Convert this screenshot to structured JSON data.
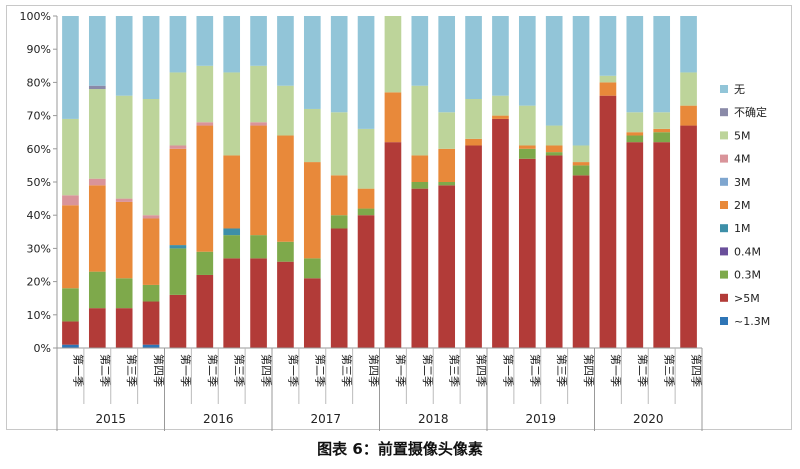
{
  "caption": "图表 6：前置摄像头像素",
  "chart_data": {
    "type": "bar",
    "stacked": true,
    "percent": true,
    "ylim": [
      0,
      100
    ],
    "yticks": [
      "0%",
      "10%",
      "20%",
      "30%",
      "40%",
      "50%",
      "60%",
      "70%",
      "80%",
      "90%",
      "100%"
    ],
    "grid": false,
    "legend_position": "right",
    "groups": [
      {
        "label": "2015",
        "categories": [
          "第一季",
          "第二季",
          "第三季",
          "第四季"
        ]
      },
      {
        "label": "2016",
        "categories": [
          "第一季",
          "第二季",
          "第三季",
          "第四季"
        ]
      },
      {
        "label": "2017",
        "categories": [
          "第一季",
          "第二季",
          "第三季",
          "第四季"
        ]
      },
      {
        "label": "2018",
        "categories": [
          "第一季",
          "第二季",
          "第三季",
          "第四季"
        ]
      },
      {
        "label": "2019",
        "categories": [
          "第一季",
          "第二季",
          "第三季",
          "第四季"
        ]
      },
      {
        "label": "2020",
        "categories": [
          "第一季",
          "第二季",
          "第三季",
          "第四季"
        ]
      }
    ],
    "series": [
      {
        "name": "~1.3M",
        "color": "#2e75b6",
        "values": [
          1,
          0,
          0,
          1,
          0,
          0,
          0,
          0,
          0,
          0,
          0,
          0,
          0,
          0,
          0,
          0,
          0,
          0,
          0,
          0,
          0,
          0,
          0,
          0
        ]
      },
      {
        "name": ">5M",
        "color": "#b23b38",
        "values": [
          7,
          12,
          12,
          13,
          16,
          22,
          27,
          27,
          26,
          21,
          36,
          40,
          62,
          48,
          49,
          61,
          69,
          57,
          58,
          52,
          76,
          62,
          62,
          67
        ]
      },
      {
        "name": "0.3M",
        "color": "#7ea94b",
        "values": [
          10,
          11,
          9,
          5,
          14,
          7,
          7,
          7,
          6,
          6,
          4,
          2,
          0,
          2,
          1,
          0,
          0,
          3,
          1,
          3,
          0,
          2,
          3,
          0
        ]
      },
      {
        "name": "0.4M",
        "color": "#6a4f9b",
        "values": [
          0,
          0,
          0,
          0,
          0,
          0,
          0,
          0,
          0,
          0,
          0,
          0,
          0,
          0,
          0,
          0,
          0,
          0,
          0,
          0,
          0,
          0,
          0,
          0
        ]
      },
      {
        "name": "1M",
        "color": "#3d8fa8",
        "values": [
          0,
          0,
          0,
          0,
          1,
          0,
          2,
          0,
          0,
          0,
          0,
          0,
          0,
          0,
          0,
          0,
          0,
          0,
          0,
          0,
          0,
          0,
          0,
          0
        ]
      },
      {
        "name": "2M",
        "color": "#e8893a",
        "values": [
          25,
          26,
          23,
          20,
          29,
          38,
          22,
          33,
          32,
          29,
          12,
          6,
          15,
          8,
          10,
          2,
          1,
          1,
          2,
          1,
          4,
          1,
          1,
          6
        ]
      },
      {
        "name": "3M",
        "color": "#7fa6cf",
        "values": [
          0,
          0,
          0,
          0,
          0,
          0,
          0,
          0,
          0,
          0,
          0,
          0,
          0,
          0,
          0,
          0,
          0,
          0,
          0,
          0,
          0,
          0,
          0,
          0
        ]
      },
      {
        "name": "4M",
        "color": "#d9949a",
        "values": [
          3,
          2,
          1,
          1,
          1,
          1,
          0,
          1,
          0,
          0,
          0,
          0,
          0,
          0,
          0,
          0,
          0,
          0,
          0,
          0,
          0,
          0,
          0,
          0
        ]
      },
      {
        "name": "5M",
        "color": "#bdd49a",
        "values": [
          23,
          27,
          31,
          35,
          22,
          17,
          25,
          17,
          15,
          16,
          19,
          18,
          23,
          21,
          11,
          12,
          6,
          12,
          6,
          5,
          2,
          6,
          5,
          10
        ]
      },
      {
        "name": "不确定",
        "color": "#8a8aa8",
        "values": [
          0,
          1,
          0,
          0,
          0,
          0,
          0,
          0,
          0,
          0,
          0,
          0,
          0,
          0,
          0,
          0,
          0,
          0,
          0,
          0,
          0,
          0,
          0,
          0
        ]
      },
      {
        "name": "无",
        "color": "#92c5d8",
        "values": [
          31,
          21,
          24,
          25,
          17,
          15,
          17,
          15,
          21,
          28,
          29,
          34,
          0,
          21,
          29,
          25,
          24,
          27,
          33,
          39,
          18,
          29,
          29,
          17
        ]
      }
    ],
    "legend_order": [
      "无",
      "不确定",
      "5M",
      "4M",
      "3M",
      "2M",
      "1M",
      "0.4M",
      "0.3M",
      ">5M",
      "~1.3M"
    ]
  }
}
